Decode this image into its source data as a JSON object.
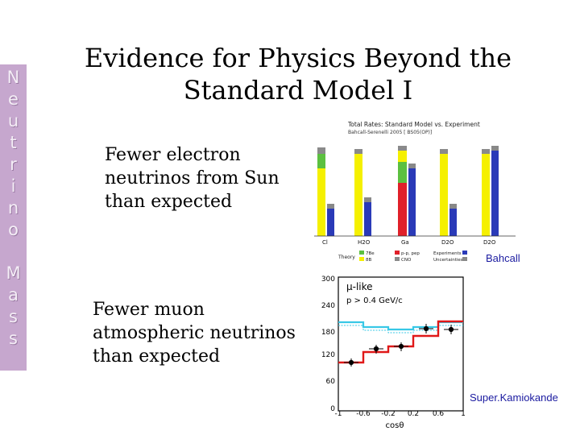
{
  "side_label": [
    "N",
    "e",
    "u",
    "t",
    "r",
    "i",
    "n",
    "o",
    "",
    "M",
    "a",
    "s",
    "s"
  ],
  "title": [
    "Evidence for Physics Beyond the",
    "Standard Model I"
  ],
  "bullets": [
    [
      "Fewer electron",
      "neutrinos from Sun",
      "than expected"
    ],
    [
      "Fewer muon",
      "atmospheric neutrinos",
      "than expected"
    ]
  ],
  "solar": {
    "title": [
      "Total Rates: Standard Model vs. Experiment",
      "Bahcall-Serenelli 2005 [ BS05(OP)]"
    ],
    "experiments": [
      "Cl",
      "H2O",
      "Ga",
      "D2O",
      "D2O"
    ],
    "legend": [
      "Theory",
      "7Be",
      "8B",
      "p-p, pep",
      "CNO",
      "Experiments",
      "Uncertainties"
    ],
    "credit": "Bahcall"
  },
  "atmo": {
    "label": "μ-like",
    "cut": "p > 0.4 GeV/c",
    "y_ticks": [
      "300",
      "240",
      "180",
      "120",
      "60",
      "0"
    ],
    "x_ticks": [
      "-1",
      "-0.6",
      "-0.2",
      "0.2",
      "0.6",
      "1"
    ],
    "xlabel": "cosθ",
    "credit": "Super.Kamiokande"
  },
  "colors": {
    "sidebar": "#c6a7ce",
    "mc_noosc": "#38c8e6",
    "fit_osc": "#e01818",
    "solar_blue": "#2a3ab8",
    "solar_yellow": "#f5f000",
    "solar_green": "#5cc040"
  }
}
